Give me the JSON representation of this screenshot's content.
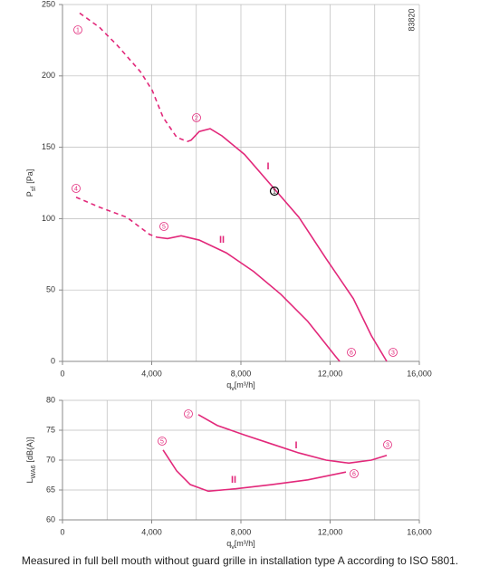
{
  "chart_data": [
    {
      "type": "line",
      "ylabel": {
        "text": "P",
        "subscript": "sf",
        "unit": "[Pa]"
      },
      "xlabel": {
        "text": "q",
        "subscript": "v",
        "unit": "[m³/h]"
      },
      "xlim": [
        0,
        16000
      ],
      "xticks": [
        0,
        {
          "value": 4000,
          "label": "4,000"
        },
        {
          "value": 8000,
          "label": "8,000"
        },
        {
          "value": 12000,
          "label": "12,000"
        },
        {
          "value": 16000,
          "label": "16,000"
        }
      ],
      "xgrid_minor": [
        2000,
        6000,
        10000,
        14000
      ],
      "ylim": [
        0,
        250
      ],
      "yticks": [
        0,
        50,
        100,
        150,
        200,
        250
      ],
      "grid": true,
      "series": [
        {
          "color": "#e2287a",
          "dashed": true,
          "x": [
            770,
            1660,
            2480,
            3490,
            4020,
            4510,
            5120,
            5600
          ],
          "values": [
            244,
            234,
            221,
            203,
            190,
            171,
            157,
            154
          ]
        },
        {
          "color": "#e2287a",
          "dashed": false,
          "x": [
            5600,
            5770,
            6130,
            6620,
            7150,
            8160,
            9380,
            10600,
            11820,
            13040,
            13850,
            14540
          ],
          "values": [
            154,
            155,
            161,
            163,
            158,
            145,
            123,
            101,
            72,
            44,
            18,
            0
          ]
        },
        {
          "color": "#e2287a",
          "dashed": true,
          "x": [
            610,
            1660,
            2880,
            3900,
            4220
          ],
          "values": [
            115,
            108,
            101,
            89,
            87
          ]
        },
        {
          "color": "#e2287a",
          "dashed": false,
          "x": [
            4220,
            4710,
            5320,
            6130,
            7350,
            8570,
            9790,
            11000,
            12220,
            12430
          ],
          "values": [
            87,
            86,
            88,
            85,
            76,
            63,
            47,
            28,
            4,
            0
          ]
        }
      ],
      "annotations": [
        {
          "text": "1",
          "circled": true,
          "color": "#e2287a"
        },
        {
          "text": "2",
          "circled": true,
          "color": "#e2287a"
        },
        {
          "text": "3",
          "circled": true,
          "color": "#e2287a"
        },
        {
          "text": "4",
          "circled": true,
          "color": "#e2287a"
        },
        {
          "text": "5",
          "circled": true,
          "color": "#e2287a"
        },
        {
          "text": "6",
          "circled": true,
          "color": "#e2287a"
        },
        {
          "text": "1",
          "circled": true,
          "color": "#000000"
        },
        {
          "text": "I",
          "circled": false,
          "color": "#e2287a"
        },
        {
          "text": "II",
          "circled": false,
          "color": "#e2287a"
        },
        {
          "text": "83820",
          "circled": false,
          "color": "#333333"
        }
      ]
    },
    {
      "type": "line",
      "ylabel": {
        "text": "L",
        "subscript": "WA6",
        "unit": "[dB(A)]"
      },
      "xlabel": {
        "text": "q",
        "subscript": "v",
        "unit": "[m³/h]"
      },
      "xlim": [
        0,
        16000
      ],
      "xticks": [
        0,
        {
          "value": 4000,
          "label": "4,000"
        },
        {
          "value": 8000,
          "label": "8,000"
        },
        {
          "value": 12000,
          "label": "12,000"
        },
        {
          "value": 16000,
          "label": "16,000"
        }
      ],
      "xgrid_minor": [
        2000,
        6000,
        10000,
        14000
      ],
      "ylim": [
        60,
        80
      ],
      "yticks": [
        60,
        65,
        70,
        75,
        80
      ],
      "grid": true,
      "series": [
        {
          "color": "#e2287a",
          "dashed": false,
          "x": [
            6090,
            6940,
            8160,
            9380,
            10600,
            11820,
            12840,
            13850,
            14540
          ],
          "values": [
            77.6,
            75.8,
            74.2,
            72.7,
            71.2,
            70.0,
            69.5,
            70.0,
            70.8
          ]
        },
        {
          "color": "#e2287a",
          "dashed": false,
          "x": [
            4510,
            5120,
            5730,
            6540,
            7760,
            9380,
            11000,
            12710
          ],
          "values": [
            71.7,
            68.2,
            65.9,
            64.8,
            65.2,
            65.9,
            66.7,
            68.0
          ]
        }
      ],
      "annotations": [
        {
          "text": "2",
          "circled": true,
          "color": "#e2287a"
        },
        {
          "text": "5",
          "circled": true,
          "color": "#e2287a"
        },
        {
          "text": "3",
          "circled": true,
          "color": "#e2287a"
        },
        {
          "text": "6",
          "circled": true,
          "color": "#e2287a"
        },
        {
          "text": "I",
          "circled": false,
          "color": "#e2287a"
        },
        {
          "text": "II",
          "circled": false,
          "color": "#e2287a"
        }
      ]
    }
  ],
  "caption": "Measured in full bell mouth without guard grille in installation type A according to ISO 5801."
}
